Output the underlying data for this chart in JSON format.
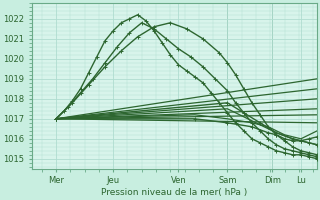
{
  "title": "",
  "xlabel": "Pression niveau de la mer( hPa )",
  "ylabel": "",
  "bg_color": "#c8eee0",
  "plot_bg_color": "#d8f4eb",
  "grid_color": "#b0ddd0",
  "line_color": "#2d6630",
  "yticks": [
    1015,
    1016,
    1017,
    1018,
    1019,
    1020,
    1021,
    1022
  ],
  "ylim": [
    1014.5,
    1022.8
  ],
  "xlim": [
    0,
    140
  ],
  "xtick_positions": [
    12,
    40,
    72,
    96,
    118,
    132
  ],
  "xtick_labels": [
    "Mer",
    "Jeu",
    "Ven",
    "Sam",
    "Dim",
    "Lu"
  ],
  "lines": [
    {
      "x": [
        12,
        16,
        20,
        24,
        28,
        32,
        36,
        40,
        44,
        48,
        52,
        56,
        60,
        64,
        68,
        72,
        76,
        80,
        84,
        88,
        92,
        96,
        100,
        104,
        108,
        112,
        116,
        120,
        124,
        128,
        132,
        136,
        140
      ],
      "y": [
        1017.0,
        1017.4,
        1017.9,
        1018.5,
        1019.3,
        1020.1,
        1020.9,
        1021.4,
        1021.8,
        1022.0,
        1022.2,
        1021.9,
        1021.4,
        1020.8,
        1020.2,
        1019.7,
        1019.4,
        1019.1,
        1018.8,
        1018.3,
        1017.8,
        1017.3,
        1016.8,
        1016.4,
        1016.0,
        1015.8,
        1015.6,
        1015.4,
        1015.3,
        1015.2,
        1015.2,
        1015.1,
        1015.0
      ],
      "marker": true,
      "lw": 1.0
    },
    {
      "x": [
        12,
        18,
        24,
        30,
        36,
        42,
        48,
        54,
        60,
        66,
        72,
        78,
        84,
        90,
        96,
        100,
        104,
        108,
        112,
        116,
        120,
        124,
        128,
        132,
        136,
        140
      ],
      "y": [
        1017.0,
        1017.6,
        1018.3,
        1019.0,
        1019.8,
        1020.6,
        1021.3,
        1021.8,
        1021.5,
        1021.0,
        1020.5,
        1020.1,
        1019.6,
        1019.0,
        1018.4,
        1017.8,
        1017.3,
        1016.8,
        1016.4,
        1016.0,
        1015.7,
        1015.5,
        1015.4,
        1015.3,
        1015.2,
        1015.1
      ],
      "marker": true,
      "lw": 1.0
    },
    {
      "x": [
        12,
        20,
        28,
        36,
        44,
        52,
        60,
        68,
        76,
        84,
        92,
        96,
        100,
        104,
        108,
        112,
        116,
        120,
        124,
        128,
        132,
        136,
        140
      ],
      "y": [
        1017.0,
        1017.8,
        1018.7,
        1019.6,
        1020.4,
        1021.1,
        1021.6,
        1021.8,
        1021.5,
        1021.0,
        1020.3,
        1019.8,
        1019.2,
        1018.5,
        1017.8,
        1017.2,
        1016.6,
        1016.2,
        1015.9,
        1015.6,
        1015.4,
        1015.3,
        1015.2
      ],
      "marker": true,
      "lw": 1.0
    },
    {
      "x": [
        12,
        140
      ],
      "y": [
        1017.0,
        1019.0
      ],
      "marker": false,
      "lw": 0.9
    },
    {
      "x": [
        12,
        140
      ],
      "y": [
        1017.0,
        1018.5
      ],
      "marker": false,
      "lw": 0.9
    },
    {
      "x": [
        12,
        140
      ],
      "y": [
        1017.0,
        1018.0
      ],
      "marker": false,
      "lw": 0.9
    },
    {
      "x": [
        12,
        140
      ],
      "y": [
        1017.0,
        1017.5
      ],
      "marker": false,
      "lw": 0.9
    },
    {
      "x": [
        12,
        140
      ],
      "y": [
        1017.0,
        1017.2
      ],
      "marker": false,
      "lw": 0.9
    },
    {
      "x": [
        12,
        140
      ],
      "y": [
        1017.0,
        1016.8
      ],
      "marker": false,
      "lw": 0.9
    },
    {
      "x": [
        12,
        80,
        96,
        108,
        116,
        120,
        124,
        128,
        132,
        136,
        140
      ],
      "y": [
        1017.0,
        1017.0,
        1016.8,
        1016.6,
        1016.3,
        1016.2,
        1016.0,
        1015.9,
        1015.9,
        1016.0,
        1016.1
      ],
      "marker": true,
      "lw": 1.0
    },
    {
      "x": [
        12,
        80,
        96,
        108,
        116,
        120,
        124,
        128,
        132,
        136,
        140
      ],
      "y": [
        1017.0,
        1017.2,
        1017.0,
        1016.8,
        1016.6,
        1016.4,
        1016.2,
        1016.1,
        1016.0,
        1016.2,
        1016.4
      ],
      "marker": false,
      "lw": 0.9
    }
  ],
  "vlines": [
    96,
    118
  ],
  "dense_lines": [
    {
      "x": [
        12,
        96,
        104,
        112,
        120,
        128,
        132,
        136,
        140
      ],
      "y": [
        1017.0,
        1017.8,
        1017.3,
        1016.8,
        1016.3,
        1016.0,
        1015.9,
        1015.8,
        1015.7
      ],
      "marker": true,
      "lw": 1.0
    },
    {
      "x": [
        12,
        96,
        104,
        112,
        120,
        128,
        132,
        136,
        140
      ],
      "y": [
        1017.0,
        1017.5,
        1017.1,
        1016.7,
        1016.3,
        1016.0,
        1015.9,
        1015.8,
        1015.7
      ],
      "marker": false,
      "lw": 0.9
    }
  ]
}
